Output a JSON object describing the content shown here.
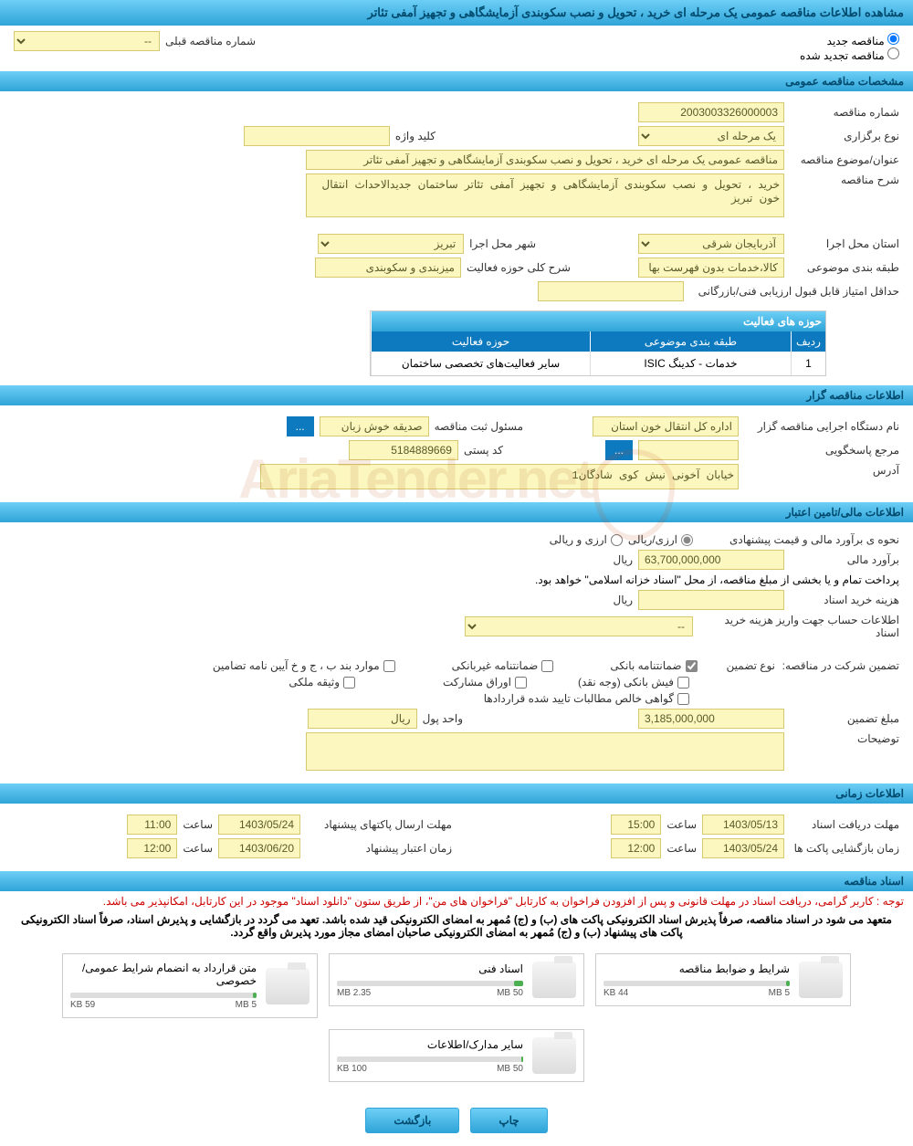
{
  "page_title": "مشاهده اطلاعات مناقصه عمومی یک مرحله ای خرید ، تحویل و نصب سکوبندی آزمایشگاهی و تجهیز آمفی تئاتر",
  "tender_status": {
    "new_label": "مناقصه جدید",
    "renewed_label": "مناقصه تجدید شده"
  },
  "prev_number": {
    "label": "شماره مناقصه قبلی",
    "value": "--"
  },
  "sections": {
    "general": "مشخصات مناقصه عمومی",
    "organizer": "اطلاعات مناقصه گزار",
    "financial": "اطلاعات مالی/تامین اعتبار",
    "timing": "اطلاعات زمانی",
    "documents": "اسناد مناقصه"
  },
  "general": {
    "tender_number_label": "شماره مناقصه",
    "tender_number": "2003003326000003",
    "type_label": "نوع برگزاری",
    "type_value": "یک مرحله ای",
    "keyword_label": "کلید واژه",
    "keyword_value": "",
    "subject_label": "عنوان/موضوع مناقصه",
    "subject_value": "مناقصه عمومی یک مرحله ای خرید ، تحویل و نصب سکوبندی آزمایشگاهی و تجهیز آمفی تئاتر",
    "description_label": "شرح مناقصه",
    "description_value": "خرید ، تحویل و نصب سکوبندی آزمایشگاهی و تجهیز آمفی تئاتر ساختمان جدیدالاحداث انتقال خون تبریز",
    "province_label": "استان محل اجرا",
    "province_value": "آذربایجان شرقی",
    "city_label": "شهر محل اجرا",
    "city_value": "تبریز",
    "category_label": "طبقه بندی موضوعی",
    "category_value": "کالا،خدمات بدون فهرست بها",
    "activity_scope_label": "شرح کلی حوزه فعالیت",
    "activity_scope_value": "میزبندی و سکوبندی",
    "min_score_label": "حداقل امتیاز قابل قبول ارزیابی فنی/بازرگانی",
    "activity_areas_title": "حوزه های فعالیت",
    "col_row": "ردیف",
    "col_category": "طبقه بندی موضوعی",
    "col_activity": "حوزه فعالیت",
    "rows": [
      {
        "n": "1",
        "cat": "خدمات - کدینگ ISIC",
        "act": "سایر فعالیت‌های تخصصی ساختمان"
      }
    ]
  },
  "organizer": {
    "dept_label": "نام دستگاه اجرایی مناقصه گزار",
    "dept_value": "اداره کل انتقال خون استان",
    "reg_officer_label": "مسئول ثبت مناقصه",
    "reg_officer_value": "صدیقه خوش زبان",
    "more_btn": "...",
    "contact_label": "مرجع پاسخگویی",
    "postal_label": "کد پستی",
    "postal_value": "5184889669",
    "address_label": "آدرس",
    "address_value": "خیابان آخونی نیش کوی شادگان1"
  },
  "financial": {
    "method_label": "نحوه ی برآورد مالی و قیمت پیشنهادی",
    "rial_label": "ارزی/ریالی",
    "currency_label": "ارزی و ریالی",
    "estimate_label": "برآورد مالی",
    "estimate_value": "63,700,000,000",
    "unit_rial": "ریال",
    "payment_note": "پرداخت تمام و یا بخشی از مبلغ مناقصه، از محل \"اسناد خزانه اسلامی\" خواهد بود.",
    "doc_fee_label": "هزینه خرید اسناد",
    "account_info_label": "اطلاعات حساب جهت واریز هزینه خرید اسناد",
    "account_value": "--",
    "guarantee_label": "تضمین شرکت در مناقصه:",
    "guarantee_type_label": "نوع تضمین",
    "g1": "ضمانتنامه بانکی",
    "g2": "ضمانتنامه غیربانکی",
    "g3": "موارد بند ب ، ج و خ آیین نامه تضامین",
    "g4": "فیش بانکی (وجه نقد)",
    "g5": "اوراق مشارکت",
    "g6": "وثیقه ملکی",
    "g7": "گواهی خالص مطالبات تایید شده قراردادها",
    "guarantee_amount_label": "مبلغ تضمین",
    "guarantee_amount": "3,185,000,000",
    "currency_unit_label": "واحد پول",
    "currency_unit": "ریال",
    "notes_label": "توضیحات"
  },
  "timing": {
    "receive_deadline_label": "مهلت دریافت اسناد",
    "receive_date": "1403/05/13",
    "receive_time": "15:00",
    "send_deadline_label": "مهلت ارسال پاکتهای پیشنهاد",
    "send_date": "1403/05/24",
    "send_time": "11:00",
    "open_label": "زمان بازگشایی پاکت ها",
    "open_date": "1403/05/24",
    "open_time": "12:00",
    "validity_label": "زمان اعتبار پیشنهاد",
    "validity_date": "1403/06/20",
    "validity_time": "12:00",
    "time_label": "ساعت"
  },
  "documents": {
    "notice1": "توجه : کاربر گرامی، دریافت اسناد در مهلت قانونی و پس از افزودن فراخوان به کارتابل \"فراخوان های من\"، از طریق ستون \"دانلود اسناد\" موجود در این کارتابل، امکانپذیر می باشد.",
    "notice2": "متعهد می شود در اسناد مناقصه، صرفاً پذیرش اسناد الکترونیکی پاکت های (ب) و (ج) مُمهر به امضای الکترونیکی قید شده باشد. تعهد می گردد در بازگشایی و پذیرش اسناد، صرفاً اسناد الکترونیکی پاکت های پیشنهاد (ب) و (ج) مُمهر به امضای الکترونیکی صاحبان امضای مجاز مورد پذیرش واقع گردد.",
    "files": [
      {
        "name": "شرایط و ضوابط مناقصه",
        "used": "44 KB",
        "total": "5 MB",
        "pct": 2
      },
      {
        "name": "اسناد فنی",
        "used": "2.35 MB",
        "total": "50 MB",
        "pct": 5
      },
      {
        "name": "متن قرارداد به انضمام شرایط عمومی/خصوصی",
        "used": "59 KB",
        "total": "5 MB",
        "pct": 2
      },
      {
        "name": "سایر مدارک/اطلاعات",
        "used": "100 KB",
        "total": "50 MB",
        "pct": 1
      }
    ]
  },
  "buttons": {
    "print": "چاپ",
    "back": "بازگشت"
  }
}
